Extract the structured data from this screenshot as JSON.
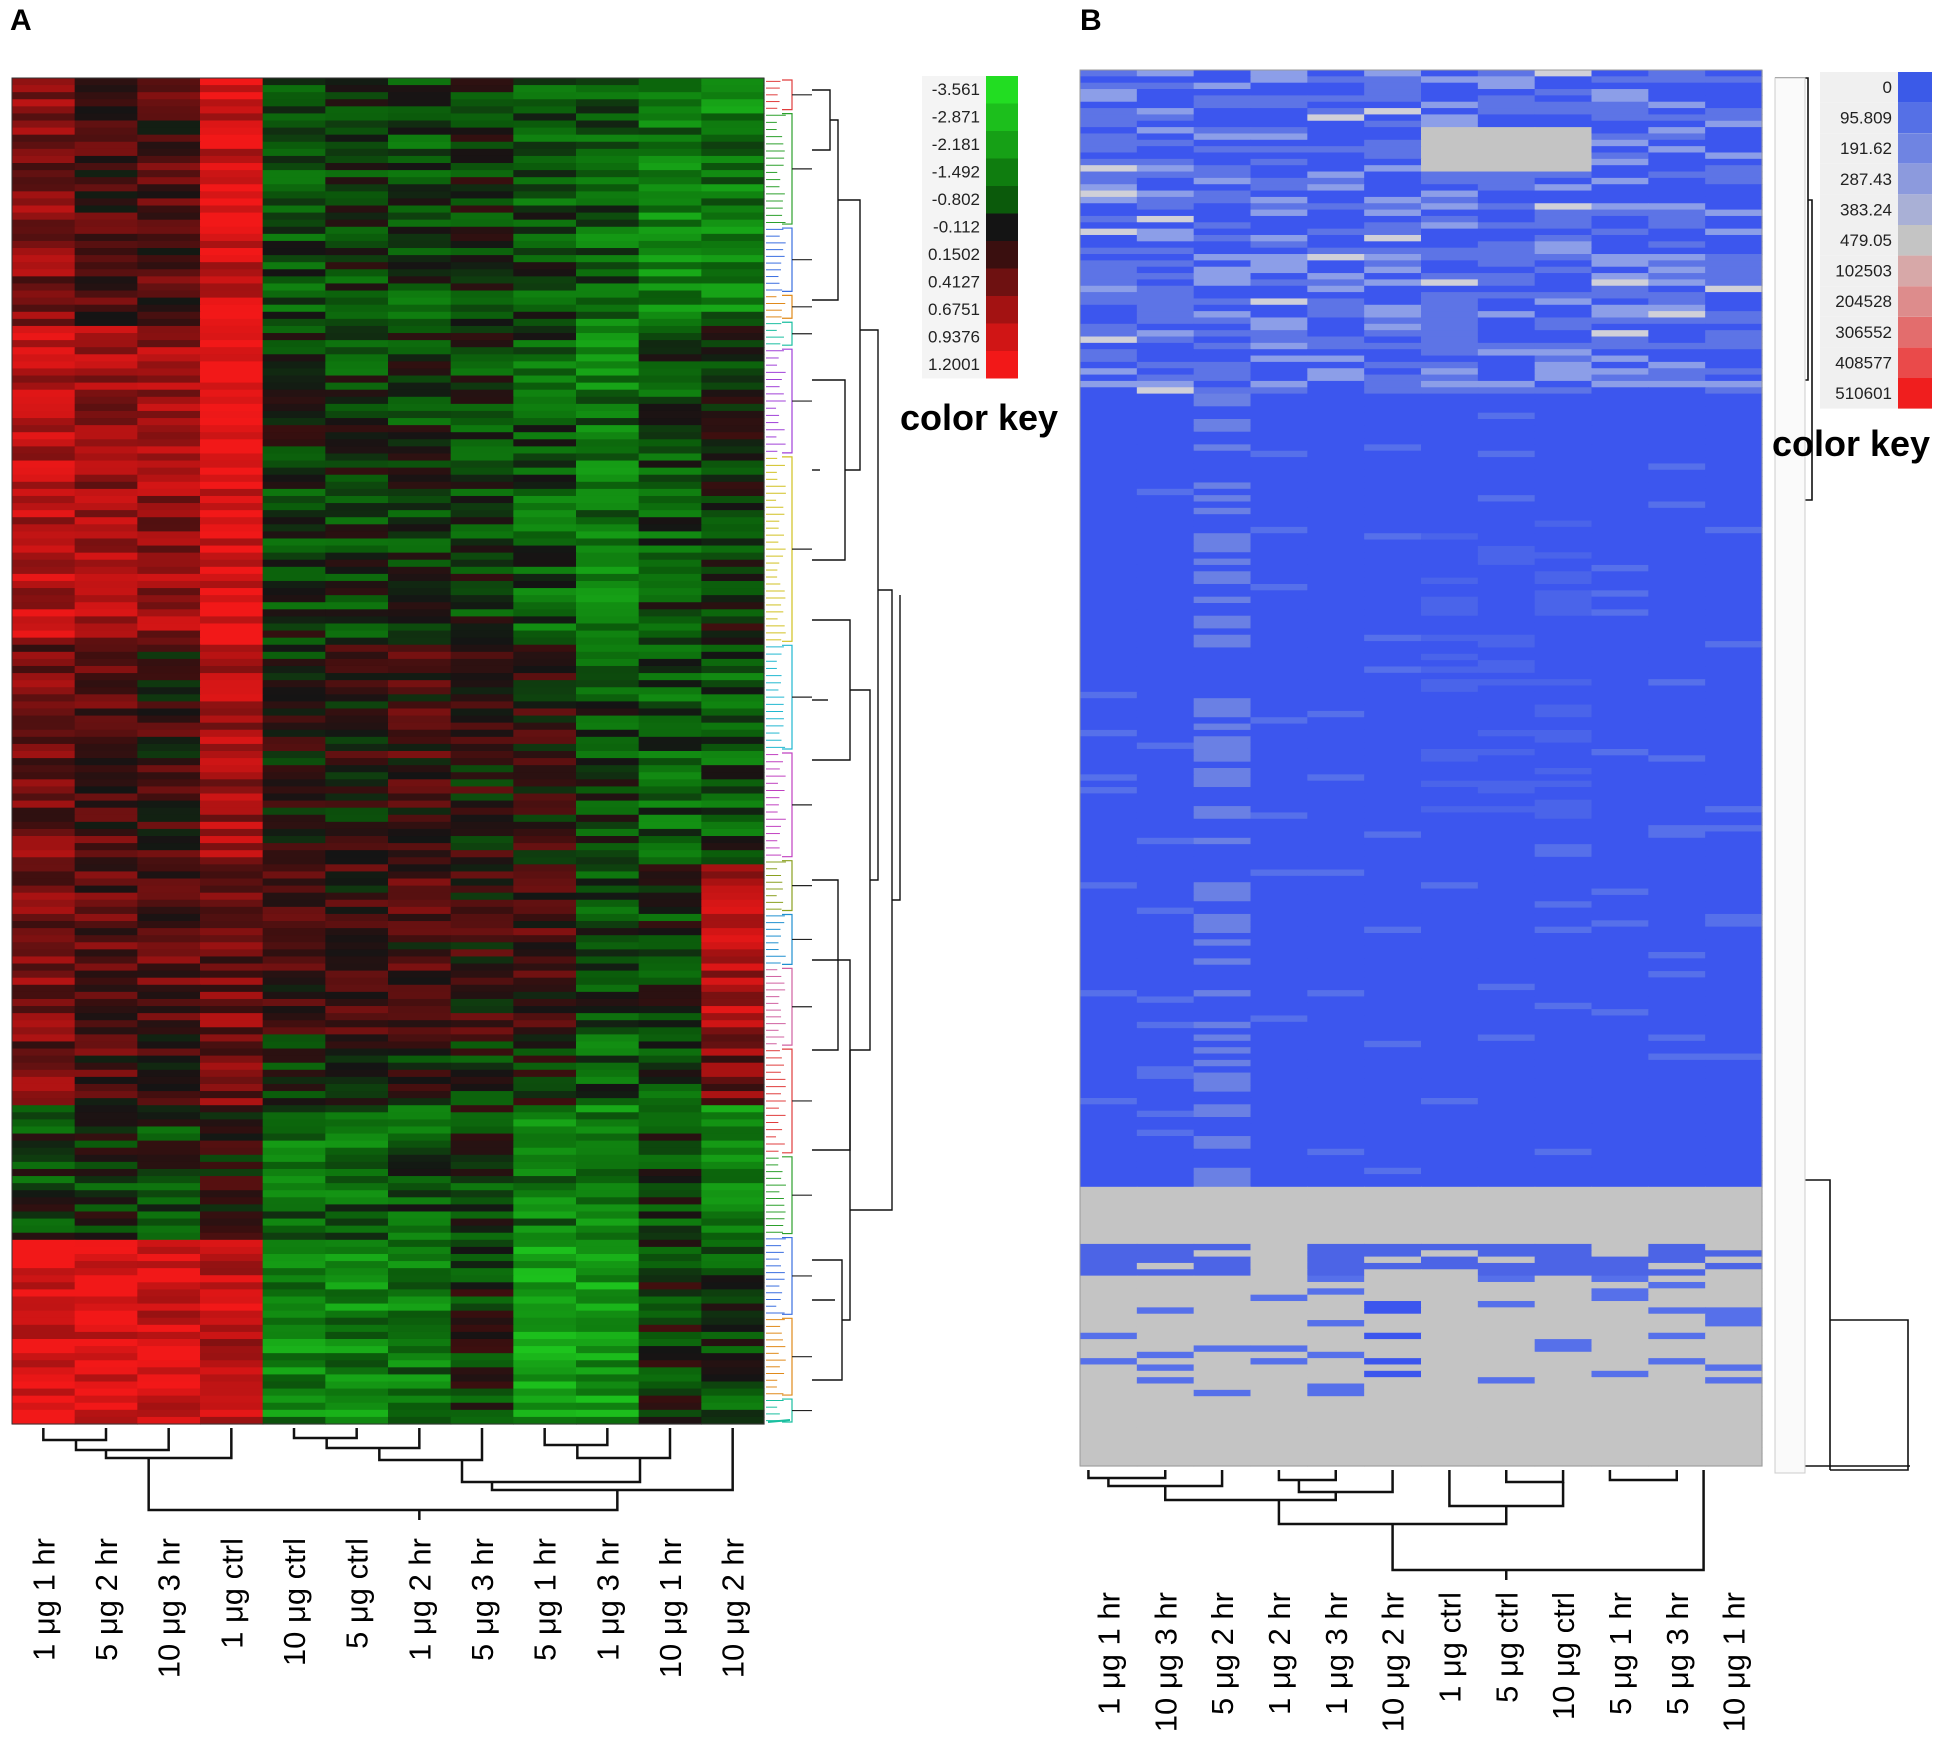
{
  "chart_data": [
    {
      "type": "heatmap",
      "panel": "A",
      "title": "",
      "columns": [
        "1 μg 1 hr",
        "5 μg 2 hr",
        "10 μg 3 hr",
        "1 μg ctrl",
        "10 μg ctrl",
        "5 μg ctrl",
        "1 μg 2 hr",
        "5 μg 3 hr",
        "5 μg 1 hr",
        "1 μg 3 hr",
        "10 μg 1 hr",
        "10 μg 2 hr"
      ],
      "color_key": {
        "title": "color key",
        "values": [
          "-3.561",
          "-2.871",
          "-2.181",
          "-1.492",
          "-0.802",
          "-0.112",
          "0.1502",
          "0.4127",
          "0.6751",
          "0.9376",
          "1.2001"
        ],
        "colors": [
          "#22dd22",
          "#1cbf1c",
          "#16a016",
          "#0f7d0f",
          "#0b5a0b",
          "#141414",
          "#3a0f0f",
          "#6e1111",
          "#a31212",
          "#d01515",
          "#f21818"
        ]
      },
      "row_dendrogram": true,
      "column_dendrogram": true
    },
    {
      "type": "heatmap",
      "panel": "B",
      "title": "",
      "columns": [
        "1 μg 1 hr",
        "10 μg 3 hr",
        "5 μg 2 hr",
        "1 μg 2 hr",
        "1 μg 3 hr",
        "10 μg 2 hr",
        "1 μg ctrl",
        "5 μg ctrl",
        "10 μg ctrl",
        "5 μg 1 hr",
        "5 μg 3 hr",
        "10 μg 1 hr"
      ],
      "color_key": {
        "title": "color key",
        "values": [
          "0",
          "95.809",
          "191.62",
          "287.43",
          "383.24",
          "479.05",
          "102503",
          "204528",
          "306552",
          "408577",
          "510601"
        ],
        "colors": [
          "#3b5ae8",
          "#5570e6",
          "#6f84e2",
          "#8c9add",
          "#a9b0d6",
          "#c4c4c4",
          "#d7a8a8",
          "#dd8c8c",
          "#e36d6d",
          "#ea4a4a",
          "#f01e1e"
        ]
      },
      "row_dendrogram": true,
      "column_dendrogram": true
    }
  ],
  "panels": {
    "a_label": "A",
    "b_label": "B"
  }
}
